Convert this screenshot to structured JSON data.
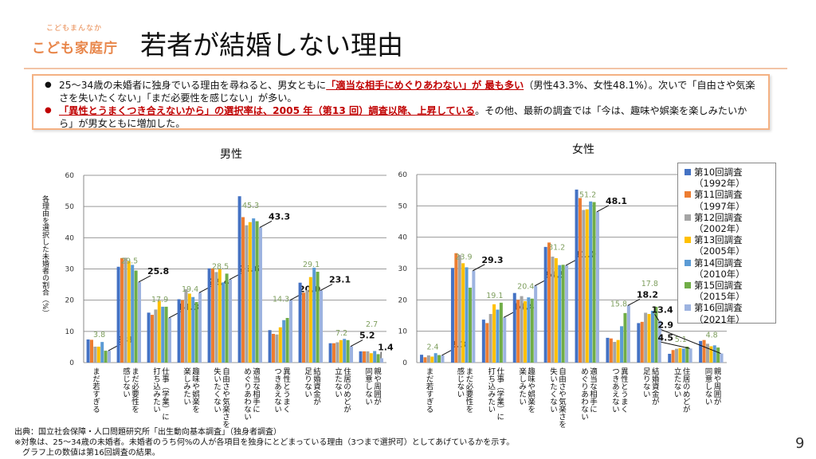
{
  "header": {
    "logo_top": "こどもまんなか",
    "logo_main": "こども家庭庁",
    "title": "若者が結婚しない理由"
  },
  "summary": {
    "bullet1": [
      {
        "t": "25～34歳の未婚者に独身でいる理由を尋ねると、男女ともに",
        "h": false
      },
      {
        "t": "「適当な相手にめぐりあわない」が 最も多い",
        "h": true
      },
      {
        "t": "（男性43.3%、女性48.1%）。次いで「自由さや気楽さを失いたくない」「まだ必要性を感じない」が多い。",
        "h": false
      }
    ],
    "bullet2": [
      {
        "t": "「異性とうまくつき合えないから」の選択率は、2005 年（第13 回）調査以降、上昇している",
        "h": true
      },
      {
        "t": "。その他、最新の調査では「今は、趣味や娯楽を楽しみたいから」が男女ともに増加した。",
        "h": false
      }
    ]
  },
  "colors": {
    "accent": "#E8864A",
    "highlight": "#C00000",
    "label_2015": "#7F9F5F",
    "series": [
      "#4472C4",
      "#ED7D31",
      "#A5A5A5",
      "#FFC000",
      "#5B9BD5",
      "#70AD47",
      "#9DB3E0"
    ]
  },
  "legend": [
    "第10回調査\n（1992年）",
    "第11回調査\n（1997年）",
    "第12回調査\n（2002年）",
    "第13回調査\n（2005年）",
    "第14回調査\n（2010年）",
    "第15回調査\n（2015年）",
    "第16回調査\n（2021年）"
  ],
  "chart_data": [
    {
      "type": "bar",
      "title": "男性",
      "ylabel": "各理由を選択した未婚者の割合（%）",
      "ylim": [
        0,
        60
      ],
      "yticks": [
        "0",
        "10",
        "20",
        "30",
        "40",
        "50",
        "60"
      ],
      "grid": true,
      "legend_position": "right",
      "categories": [
        "まだ若すぎる",
        "まだ必要性を\n感じない",
        "仕事（学業）に\n打ち込みたい",
        "趣味や娯楽を\n楽しみたい",
        "自由さや気楽さを\n失いたくない",
        "適当な相手に\nめぐりあわない",
        "異性とうまく\nつきあえない",
        "結婚資金が\n足りない",
        "住居のめどが\n立たない",
        "親や周囲が\n同意しない"
      ],
      "series": [
        {
          "name": "第10回調査（1992年）",
          "values": [
            7.4,
            30.7,
            16.0,
            20.3,
            30.2,
            53.3,
            10.4,
            25.6,
            6.2,
            3.6
          ]
        },
        {
          "name": "第11回調査（1997年）",
          "values": [
            7.3,
            33.5,
            15.3,
            20.0,
            30.2,
            46.6,
            9.2,
            22.4,
            6.2,
            3.6
          ]
        },
        {
          "name": "第12回調査（2002年）",
          "values": [
            5.1,
            33.6,
            17.0,
            23.5,
            29.0,
            44.0,
            9.0,
            23.2,
            6.5,
            3.6
          ]
        },
        {
          "name": "第13回調査（2005年）",
          "values": [
            5.1,
            32.4,
            19.8,
            22.1,
            29.9,
            45.0,
            11.3,
            27.4,
            7.2,
            3.0
          ]
        },
        {
          "name": "第14回調査（2010年）",
          "values": [
            6.6,
            31.3,
            17.9,
            21.0,
            25.7,
            46.2,
            13.6,
            30.4,
            7.6,
            3.7
          ]
        },
        {
          "name": "第15回調査（2015年）",
          "values": [
            3.8,
            29.5,
            17.9,
            19.4,
            28.5,
            45.3,
            14.3,
            29.1,
            7.2,
            2.7
          ]
        },
        {
          "name": "第16回調査（2021年）",
          "values": [
            3.8,
            25.8,
            14.3,
            22.4,
            26.6,
            43.3,
            20.0,
            23.1,
            5.2,
            1.4
          ]
        }
      ],
      "labels_2015": [
        "3.8",
        "29.5",
        "17.9",
        "19.4",
        "28.5",
        "45.3",
        "14.3",
        "29.1",
        "7.2",
        "2.7"
      ],
      "labels_2021": [
        "3.8",
        "25.8",
        "14.3",
        "22.4",
        "26.6",
        "43.3",
        "20.0",
        "23.1",
        "5.2",
        "1.4"
      ]
    },
    {
      "type": "bar",
      "title": "女性",
      "ylim": [
        0,
        60
      ],
      "yticks": [
        "0",
        "10",
        "20",
        "30",
        "40",
        "50",
        "60"
      ],
      "grid": true,
      "categories": [
        "まだ若すぎる",
        "まだ必要性を\n感じない",
        "仕事（学業）に\n打ち込みたい",
        "趣味や娯楽を\n楽しみたい",
        "自由さや気楽さを\n失いたくない",
        "適当な相手に\nめぐりあわない",
        "異性とうまく\nつきあえない",
        "結婚資金が\n足りない",
        "住居のめどが\n立たない",
        "親や周囲が\n同意しない"
      ],
      "series": [
        {
          "name": "第10回調査（1992年）",
          "values": [
            2.5,
            30.2,
            13.7,
            22.2,
            36.9,
            55.2,
            7.9,
            12.6,
            2.8,
            6.9
          ]
        },
        {
          "name": "第11回調査（1997年）",
          "values": [
            1.7,
            34.9,
            12.6,
            20.0,
            38.3,
            52.5,
            7.7,
            13.0,
            4.0,
            7.2
          ]
        },
        {
          "name": "第12回調査（2002年）",
          "values": [
            2.3,
            34.3,
            15.5,
            21.2,
            33.8,
            48.7,
            6.6,
            15.9,
            4.4,
            6.0
          ]
        },
        {
          "name": "第13回調査（2005年）",
          "values": [
            1.9,
            31.7,
            18.6,
            19.6,
            33.3,
            48.9,
            7.2,
            15.5,
            4.6,
            5.2
          ]
        },
        {
          "name": "第14回調査（2010年）",
          "values": [
            3.0,
            30.4,
            16.9,
            20.8,
            31.1,
            51.4,
            11.6,
            16.5,
            4.5,
            5.5
          ]
        },
        {
          "name": "第15回調査（2015年）",
          "values": [
            2.4,
            23.9,
            19.1,
            20.4,
            31.2,
            51.2,
            15.8,
            17.8,
            5.1,
            4.8
          ]
        },
        {
          "name": "第16回調査（2021年）",
          "values": [
            2.3,
            29.3,
            14.4,
            24.5,
            31.0,
            48.1,
            18.2,
            13.4,
            4.5,
            2.9
          ]
        }
      ],
      "labels_2015": [
        "2.4",
        "23.9",
        "19.1",
        "20.4",
        "31.2",
        "51.2",
        "15.8",
        "17.8",
        "5.1",
        "4.8"
      ],
      "labels_2021": [
        "2.3",
        "29.3",
        "14.4",
        "24.5",
        "31.0",
        "48.1",
        "18.2",
        "13.4",
        "4.5",
        "2.9"
      ]
    }
  ],
  "footer": {
    "source": "出典：国立社会保障・人口問題研究所「出生動向基本調査」（独身者調査）",
    "note1": "※対象は、25～34歳の未婚者。未婚者のうち何%の人が各項目を独身にとどまっている理由（3つまで選択可）としてあげているかを示す。",
    "note2": "　グラフ上の数値は第16回調査の結果。",
    "page_number": "9"
  }
}
